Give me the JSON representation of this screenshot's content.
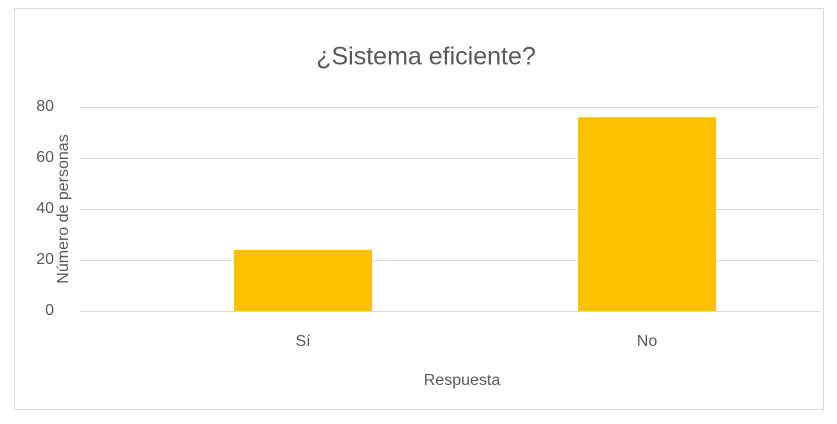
{
  "chart_data": {
    "type": "bar",
    "title": "¿Sistema eficiente?",
    "x_label": "Respuesta",
    "y_label": "Número de personas",
    "categories": [
      "Sí",
      "No"
    ],
    "values": [
      24,
      76
    ],
    "color": "#ffc000",
    "ylim": [
      0,
      80
    ],
    "yticks": [
      0,
      20,
      40,
      60,
      80
    ],
    "grid": true
  }
}
